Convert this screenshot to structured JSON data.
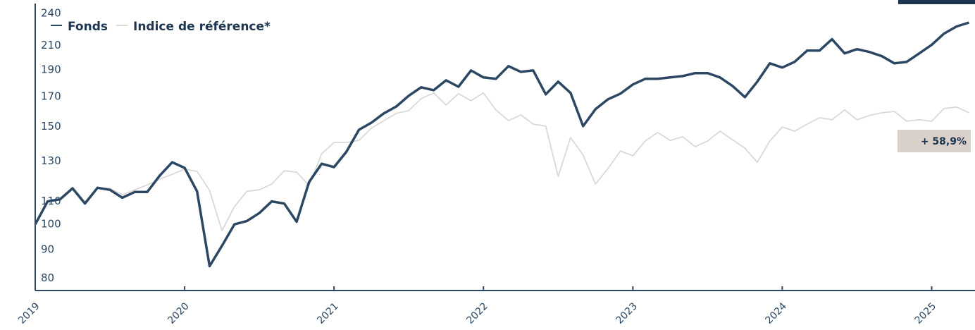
{
  "chart_data": {
    "type": "line",
    "legend": {
      "position": "top-left"
    },
    "annotation": {
      "text": "+ 58,9%",
      "color": "#d9d0c9"
    },
    "log_scale": true,
    "x": [
      2019,
      2019.083,
      2019.167,
      2019.25,
      2019.333,
      2019.417,
      2019.5,
      2019.583,
      2019.667,
      2019.75,
      2019.833,
      2019.917,
      2020,
      2020.083,
      2020.167,
      2020.25,
      2020.333,
      2020.417,
      2020.5,
      2020.583,
      2020.667,
      2020.75,
      2020.833,
      2020.917,
      2021,
      2021.083,
      2021.167,
      2021.25,
      2021.333,
      2021.417,
      2021.5,
      2021.583,
      2021.667,
      2021.75,
      2021.833,
      2021.917,
      2022,
      2022.083,
      2022.167,
      2022.25,
      2022.333,
      2022.417,
      2022.5,
      2022.583,
      2022.667,
      2022.75,
      2022.833,
      2022.917,
      2023,
      2023.083,
      2023.167,
      2023.25,
      2023.333,
      2023.417,
      2023.5,
      2023.583,
      2023.667,
      2023.75,
      2023.833,
      2023.917,
      2024,
      2024.083,
      2024.167,
      2024.25,
      2024.333,
      2024.417,
      2024.5,
      2024.583,
      2024.667,
      2024.75,
      2024.833,
      2024.917,
      2025,
      2025.083,
      2025.167,
      2025.25
    ],
    "series": [
      {
        "name": "Fonds",
        "color": "#2c4763",
        "values": [
          100,
          110,
          111,
          116.1,
          109,
          116.4,
          115.4,
          111.7,
          114.4,
          114.4,
          122.4,
          129.4,
          126.4,
          114.7,
          84.1,
          91.5,
          100,
          101.4,
          104.8,
          110,
          109,
          101.1,
          119.2,
          128.6,
          126.8,
          135.2,
          148.1,
          152.5,
          158.5,
          163.1,
          170.5,
          176.6,
          174.5,
          181.8,
          177,
          189.4,
          184,
          182.9,
          192.8,
          188.3,
          189.4,
          171.5,
          180.8,
          172.5,
          150.3,
          161.3,
          168,
          172,
          178.7,
          182.9,
          182.9,
          184,
          185,
          187.3,
          187.3,
          184,
          177.6,
          169.5,
          180.8,
          195.1,
          191.7,
          196.3,
          205.7,
          205.7,
          215.6,
          203.3,
          206.9,
          204.5,
          200.9,
          195.1,
          196.3,
          203.3,
          210.6,
          220.7,
          227.3,
          231
        ]
      },
      {
        "name": "Indice de référence*",
        "color": "#d9d9d9",
        "values": [
          100,
          110,
          111,
          116.8,
          110,
          116.1,
          116.1,
          113.1,
          115.4,
          117.8,
          120.6,
          123.1,
          125.7,
          124.6,
          115.1,
          97.4,
          107.6,
          114.7,
          115.4,
          118.2,
          124.9,
          124.2,
          117.5,
          134,
          140.5,
          140.5,
          141.7,
          149,
          153.8,
          158.5,
          160.3,
          168.5,
          172.5,
          164.1,
          172,
          167,
          172.5,
          160.8,
          153.8,
          157.5,
          151.6,
          150.3,
          122,
          143.4,
          133.3,
          118.2,
          126,
          135.6,
          132.9,
          141.3,
          146.4,
          141.7,
          143.8,
          138.1,
          141.3,
          147.2,
          142.1,
          137.2,
          129.4,
          141.3,
          149.8,
          147.2,
          151.6,
          155.7,
          154.3,
          160.8,
          154.3,
          157.1,
          158.9,
          159.8,
          153.4,
          154.3,
          153.4,
          161.7,
          162.7,
          158.9
        ]
      }
    ],
    "xlim": [
      2019,
      2025.29
    ],
    "xticks": [
      2019,
      2020,
      2021,
      2022,
      2023,
      2024,
      2025
    ],
    "ylim": [
      76,
      250
    ],
    "yticks": [
      80,
      90,
      100,
      110,
      130,
      150,
      170,
      190,
      210,
      240
    ]
  }
}
